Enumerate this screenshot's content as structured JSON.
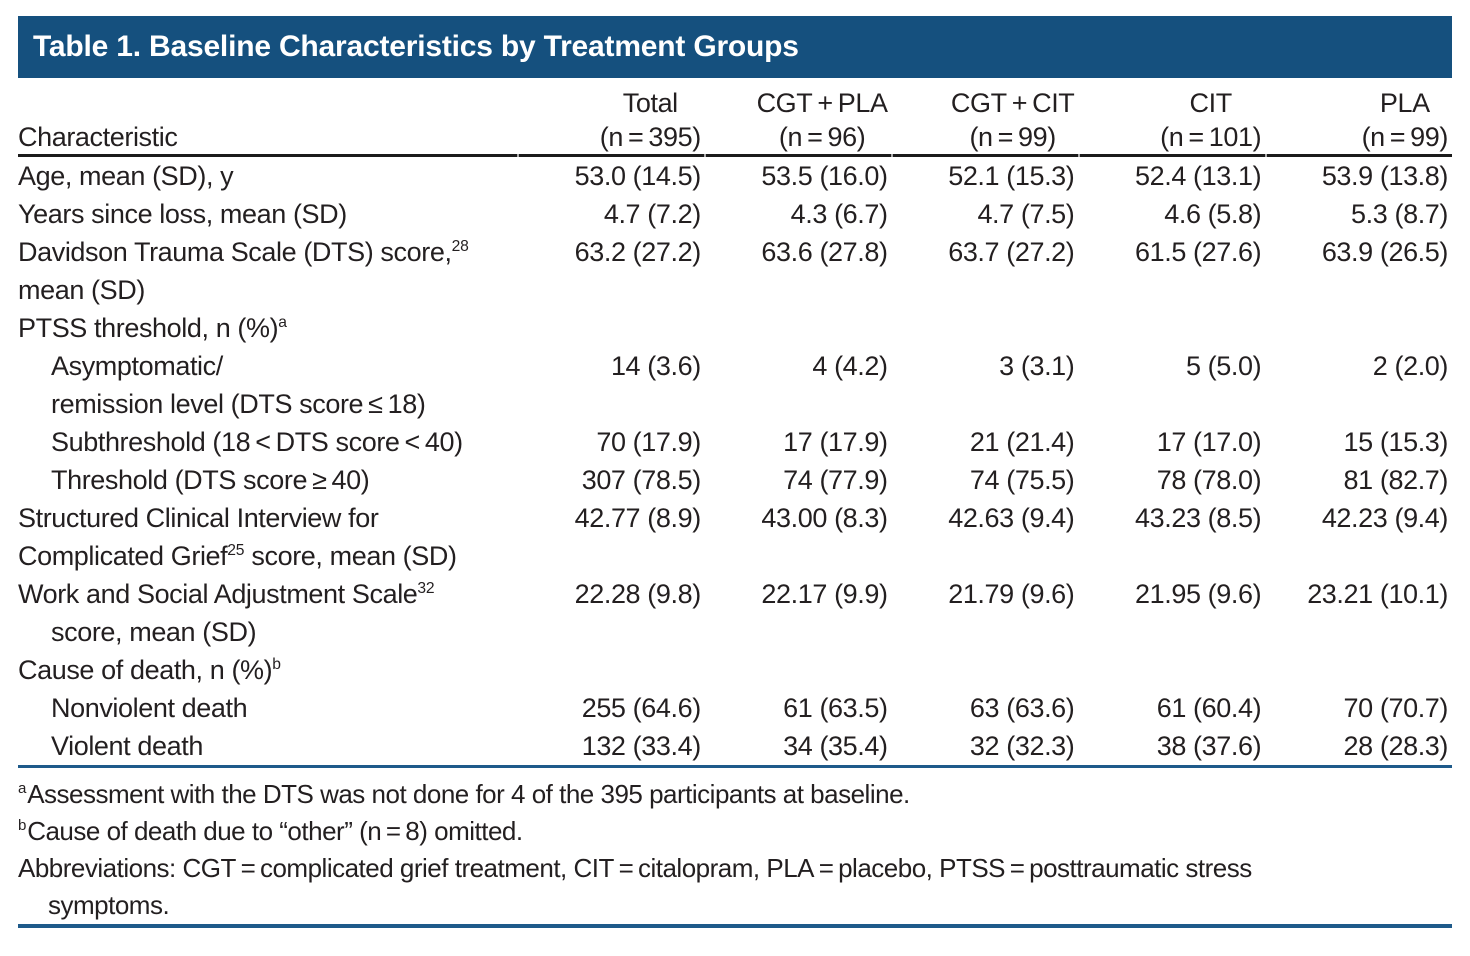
{
  "title": "Table 1. Baseline Characteristics by Treatment Groups",
  "columns": {
    "characteristic_label": "Characteristic",
    "groups": [
      {
        "name": "Total",
        "n": "(n = 395)"
      },
      {
        "name": "CGT + PLA",
        "n": "(n = 96)"
      },
      {
        "name": "CGT + CIT",
        "n": "(n = 99)"
      },
      {
        "name": "CIT",
        "n": "(n = 101)"
      },
      {
        "name": "PLA",
        "n": "(n = 99)"
      }
    ]
  },
  "rows": [
    {
      "line1": {
        "pre": "Age, mean (SD), y",
        "sup": "",
        "post": ""
      },
      "indent": false,
      "values": [
        "53.0 (14.5)",
        "53.5 (16.0)",
        "52.1 (15.3)",
        "52.4 (13.1)",
        "53.9 (13.8)"
      ]
    },
    {
      "line1": {
        "pre": "Years since loss, mean (SD)",
        "sup": "",
        "post": ""
      },
      "indent": false,
      "values": [
        "4.7 (7.2)",
        "4.3 (6.7)",
        "4.7 (7.5)",
        "4.6 (5.8)",
        "5.3 (8.7)"
      ]
    },
    {
      "line1": {
        "pre": "Davidson Trauma Scale (DTS) score,",
        "sup": "28",
        "post": ""
      },
      "line2": {
        "pre": "mean (SD)",
        "sup": "",
        "post": "",
        "indent": false
      },
      "indent": false,
      "values": [
        "63.2 (27.2)",
        "63.6 (27.8)",
        "63.7 (27.2)",
        "61.5 (27.6)",
        "63.9 (26.5)"
      ]
    },
    {
      "line1": {
        "pre": "PTSS threshold, n (%)",
        "sup": "a",
        "post": ""
      },
      "indent": false,
      "values": [
        "",
        "",
        "",
        "",
        ""
      ]
    },
    {
      "line1": {
        "pre": "Asymptomatic/",
        "sup": "",
        "post": ""
      },
      "line2": {
        "pre": "remission level (DTS score ≤ 18)",
        "sup": "",
        "post": "",
        "indent": false
      },
      "indent": true,
      "values": [
        "14 (3.6)",
        "4 (4.2)",
        "3 (3.1)",
        "5 (5.0)",
        "2 (2.0)"
      ]
    },
    {
      "line1": {
        "pre": "Subthreshold (18 < DTS score < 40)",
        "sup": "",
        "post": ""
      },
      "indent": true,
      "values": [
        "70 (17.9)",
        "17 (17.9)",
        "21 (21.4)",
        "17 (17.0)",
        "15 (15.3)"
      ]
    },
    {
      "line1": {
        "pre": "Threshold (DTS score ≥ 40)",
        "sup": "",
        "post": ""
      },
      "indent": true,
      "values": [
        "307 (78.5)",
        "74 (77.9)",
        "74 (75.5)",
        "78 (78.0)",
        "81 (82.7)"
      ]
    },
    {
      "line1": {
        "pre": "Structured Clinical Interview for",
        "sup": "",
        "post": ""
      },
      "line2": {
        "pre": "Complicated Grief",
        "sup": "25",
        "post": " score, mean (SD)",
        "indent": false
      },
      "indent": false,
      "values": [
        "42.77 (8.9)",
        "43.00 (8.3)",
        "42.63 (9.4)",
        "43.23 (8.5)",
        "42.23 (9.4)"
      ]
    },
    {
      "line1": {
        "pre": "Work and Social Adjustment Scale",
        "sup": "32",
        "post": ""
      },
      "line2": {
        "pre": "score, mean (SD)",
        "sup": "",
        "post": "",
        "indent": true
      },
      "indent": false,
      "values": [
        "22.28 (9.8)",
        "22.17 (9.9)",
        "21.79 (9.6)",
        "21.95 (9.6)",
        "23.21 (10.1)"
      ]
    },
    {
      "line1": {
        "pre": "Cause of death, n (%)",
        "sup": "b",
        "post": ""
      },
      "indent": false,
      "values": [
        "",
        "",
        "",
        "",
        ""
      ]
    },
    {
      "line1": {
        "pre": "Nonviolent death",
        "sup": "",
        "post": ""
      },
      "indent": true,
      "values": [
        "255 (64.6)",
        "61 (63.5)",
        "63 (63.6)",
        "61 (60.4)",
        "70 (70.7)"
      ]
    },
    {
      "line1": {
        "pre": "Violent death",
        "sup": "",
        "post": ""
      },
      "indent": true,
      "values": [
        "132 (33.4)",
        "34 (35.4)",
        "32 (32.3)",
        "38 (37.6)",
        "28 (28.3)"
      ]
    }
  ],
  "footnotes": {
    "a": {
      "marker": "a",
      "text": "Assessment with the DTS was not done for 4 of the 395 participants at baseline."
    },
    "b": {
      "marker": "b",
      "text": "Cause of death due to “other” (n = 8) omitted."
    },
    "abbreviations_line1": "Abbreviations: CGT = complicated grief treatment, CIT = citalopram, PLA = placebo, PTSS = posttraumatic stress",
    "abbreviations_line2": "symptoms."
  },
  "colors": {
    "title_bar_bg": "#15507E",
    "title_text": "#FFFFFF",
    "header_rule": "#1B1B1B",
    "blue_rule": "#1E5A8A",
    "body_text": "#231F20"
  }
}
